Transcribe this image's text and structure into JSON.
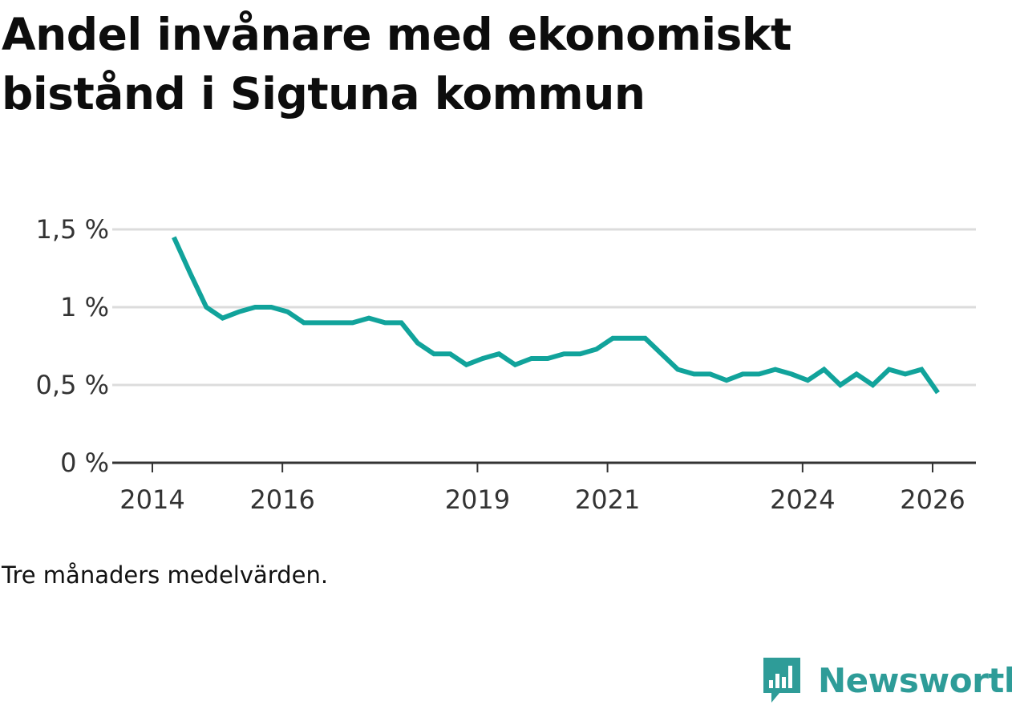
{
  "title": "Andel invånare med ekonomiskt bistånd i Sigtuna kommun",
  "note": "Tre månaders medelvärden.",
  "logo": {
    "text": "Newsworthy",
    "color": "#2e9c98",
    "icon": "newsworthy-logo-icon"
  },
  "colors": {
    "line": "#11a39b",
    "grid": "#dcdcdc",
    "axis": "#333333"
  },
  "chart_data": {
    "type": "line",
    "title": "Andel invånare med ekonomiskt bistånd i Sigtuna kommun",
    "xlabel": "",
    "ylabel": "",
    "ylim": [
      0,
      1.5
    ],
    "xlim": [
      2014,
      2026.5
    ],
    "y_ticks": [
      {
        "value": 0,
        "label": "0 %"
      },
      {
        "value": 0.5,
        "label": "0,5 %"
      },
      {
        "value": 1,
        "label": "1 %"
      },
      {
        "value": 1.5,
        "label": "1,5 %"
      }
    ],
    "x_ticks": [
      {
        "value": 2014,
        "label": "2014"
      },
      {
        "value": 2016,
        "label": "2016"
      },
      {
        "value": 2019,
        "label": "2019"
      },
      {
        "value": 2021,
        "label": "2021"
      },
      {
        "value": 2024,
        "label": "2024"
      },
      {
        "value": 2026,
        "label": "2026"
      }
    ],
    "series": [
      {
        "name": "Andel invånare med ekonomiskt bistånd",
        "x": [
          2014.33,
          2014.58,
          2014.83,
          2015.08,
          2015.33,
          2015.58,
          2015.83,
          2016.08,
          2016.33,
          2016.58,
          2016.83,
          2017.08,
          2017.33,
          2017.58,
          2017.83,
          2018.08,
          2018.33,
          2018.58,
          2018.83,
          2019.08,
          2019.33,
          2019.58,
          2019.83,
          2020.08,
          2020.33,
          2020.58,
          2020.83,
          2021.08,
          2021.33,
          2021.58,
          2021.83,
          2022.08,
          2022.33,
          2022.58,
          2022.83,
          2023.08,
          2023.33,
          2023.58,
          2023.83,
          2024.08,
          2024.33,
          2024.58,
          2024.83,
          2025.08,
          2025.33,
          2025.58,
          2025.83,
          2026.08
        ],
        "values": [
          1.45,
          1.22,
          1.0,
          0.93,
          0.97,
          1.0,
          1.0,
          0.97,
          0.9,
          0.9,
          0.9,
          0.9,
          0.93,
          0.9,
          0.9,
          0.77,
          0.7,
          0.7,
          0.63,
          0.67,
          0.7,
          0.63,
          0.67,
          0.67,
          0.7,
          0.7,
          0.73,
          0.8,
          0.8,
          0.8,
          0.7,
          0.6,
          0.57,
          0.57,
          0.53,
          0.57,
          0.57,
          0.6,
          0.57,
          0.53,
          0.6,
          0.5,
          0.57,
          0.5,
          0.6,
          0.57,
          0.6,
          0.45
        ]
      }
    ]
  }
}
